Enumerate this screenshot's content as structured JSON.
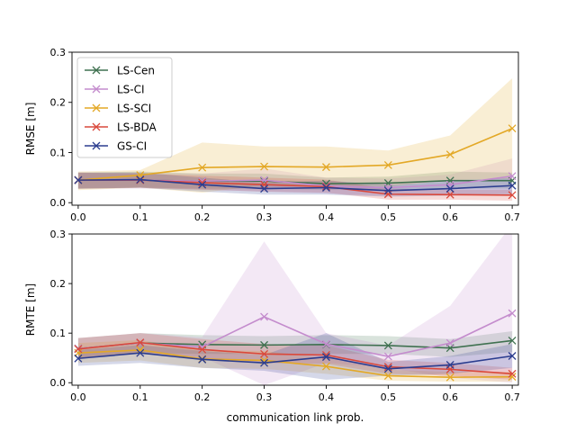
{
  "colors": {
    "LS-Cen": "#3f7150",
    "LS-CI": "#c48ccd",
    "LS-SCI": "#e3a826",
    "LS-BDA": "#d9483b",
    "GS-CI": "#2b3d8f"
  },
  "chart_data": [
    {
      "type": "line",
      "ylabel": "RMSE [m]",
      "xlabel": "",
      "xlim": [
        -0.01,
        0.71
      ],
      "ylim": [
        -0.005,
        0.3
      ],
      "xticks": [
        "0.0",
        "0.1",
        "0.2",
        "0.3",
        "0.4",
        "0.5",
        "0.6",
        "0.7"
      ],
      "yticks": [
        "0.0",
        "0.1",
        "0.2",
        "0.3"
      ],
      "legend_position": "top-left",
      "x": [
        0.0,
        0.1,
        0.2,
        0.3,
        0.4,
        0.5,
        0.6,
        0.7
      ],
      "series": [
        {
          "name": "LS-Cen",
          "values": [
            0.045,
            0.045,
            0.043,
            0.043,
            0.038,
            0.039,
            0.044,
            0.044
          ],
          "lower": [
            0.028,
            0.03,
            0.028,
            0.028,
            0.026,
            0.026,
            0.028,
            0.028
          ],
          "upper": [
            0.06,
            0.062,
            0.058,
            0.058,
            0.05,
            0.052,
            0.062,
            0.06
          ]
        },
        {
          "name": "LS-CI",
          "values": [
            0.045,
            0.045,
            0.043,
            0.045,
            0.033,
            0.03,
            0.036,
            0.053
          ],
          "lower": [
            0.028,
            0.028,
            0.026,
            0.022,
            0.018,
            0.014,
            0.016,
            0.018
          ],
          "upper": [
            0.06,
            0.06,
            0.058,
            0.068,
            0.05,
            0.048,
            0.056,
            0.088
          ]
        },
        {
          "name": "LS-SCI",
          "values": [
            0.045,
            0.055,
            0.07,
            0.072,
            0.071,
            0.075,
            0.096,
            0.148
          ],
          "lower": [
            0.025,
            0.03,
            0.02,
            0.035,
            0.032,
            0.032,
            0.045,
            0.048
          ],
          "upper": [
            0.062,
            0.065,
            0.12,
            0.112,
            0.112,
            0.104,
            0.134,
            0.248
          ]
        },
        {
          "name": "LS-BDA",
          "values": [
            0.045,
            0.045,
            0.04,
            0.036,
            0.032,
            0.017,
            0.016,
            0.015
          ],
          "lower": [
            0.028,
            0.03,
            0.026,
            0.022,
            0.02,
            0.006,
            0.006,
            0.004
          ],
          "upper": [
            0.06,
            0.058,
            0.054,
            0.05,
            0.046,
            0.028,
            0.026,
            0.026
          ]
        },
        {
          "name": "GS-CI",
          "values": [
            0.045,
            0.046,
            0.036,
            0.028,
            0.03,
            0.024,
            0.028,
            0.034
          ],
          "lower": [
            0.028,
            0.03,
            0.022,
            0.016,
            0.016,
            0.012,
            0.014,
            0.016
          ],
          "upper": [
            0.06,
            0.06,
            0.05,
            0.04,
            0.044,
            0.036,
            0.042,
            0.05
          ]
        }
      ]
    },
    {
      "type": "line",
      "ylabel": "RMTE [m]",
      "xlabel": "communication link prob.",
      "xlim": [
        -0.01,
        0.71
      ],
      "ylim": [
        -0.005,
        0.3
      ],
      "xticks": [
        "0.0",
        "0.1",
        "0.2",
        "0.3",
        "0.4",
        "0.5",
        "0.6",
        "0.7"
      ],
      "yticks": [
        "0.0",
        "0.1",
        "0.2",
        "0.3"
      ],
      "x": [
        0.0,
        0.1,
        0.2,
        0.3,
        0.4,
        0.5,
        0.6,
        0.7
      ],
      "series": [
        {
          "name": "LS-Cen",
          "values": [
            0.069,
            0.08,
            0.077,
            0.076,
            0.077,
            0.075,
            0.07,
            0.085
          ],
          "lower": [
            0.05,
            0.06,
            0.058,
            0.058,
            0.058,
            0.058,
            0.052,
            0.062
          ],
          "upper": [
            0.09,
            0.1,
            0.096,
            0.094,
            0.096,
            0.094,
            0.088,
            0.104
          ]
        },
        {
          "name": "LS-CI",
          "values": [
            0.069,
            0.08,
            0.072,
            0.133,
            0.078,
            0.053,
            0.08,
            0.14
          ],
          "lower": [
            0.05,
            0.06,
            0.052,
            -0.005,
            0.04,
            0.03,
            0.01,
            0.0
          ],
          "upper": [
            0.09,
            0.1,
            0.092,
            0.285,
            0.1,
            0.075,
            0.155,
            0.32
          ]
        },
        {
          "name": "LS-SCI",
          "values": [
            0.06,
            0.066,
            0.048,
            0.045,
            0.033,
            0.014,
            0.011,
            0.012
          ],
          "lower": [
            0.04,
            0.045,
            0.03,
            0.028,
            0.018,
            0.004,
            0.002,
            0.002
          ],
          "upper": [
            0.08,
            0.086,
            0.066,
            0.064,
            0.05,
            0.026,
            0.022,
            0.022
          ]
        },
        {
          "name": "LS-BDA",
          "values": [
            0.068,
            0.081,
            0.067,
            0.058,
            0.056,
            0.032,
            0.027,
            0.018
          ],
          "lower": [
            0.048,
            0.06,
            0.048,
            0.04,
            0.038,
            0.018,
            0.014,
            0.006
          ],
          "upper": [
            0.09,
            0.1,
            0.088,
            0.078,
            0.076,
            0.046,
            0.04,
            0.03
          ]
        },
        {
          "name": "GS-CI",
          "values": [
            0.049,
            0.06,
            0.047,
            0.04,
            0.052,
            0.028,
            0.036,
            0.054
          ],
          "lower": [
            0.034,
            0.04,
            0.03,
            0.024,
            0.006,
            0.014,
            0.018,
            0.03
          ],
          "upper": [
            0.066,
            0.076,
            0.064,
            0.056,
            0.1,
            0.042,
            0.054,
            0.078
          ]
        }
      ]
    }
  ]
}
